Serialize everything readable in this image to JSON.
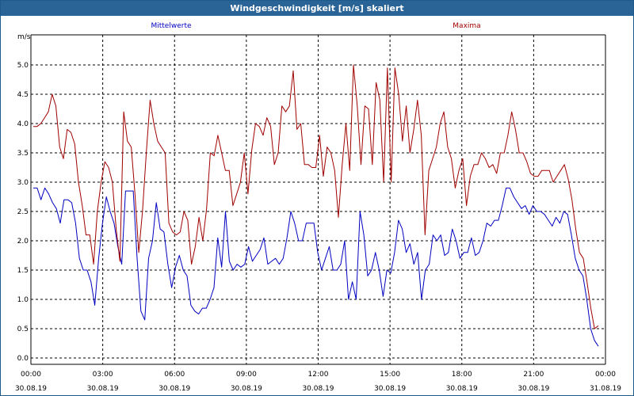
{
  "window": {
    "title": "Windgeschwindigkeit [m/s] skaliert"
  },
  "colors": {
    "titlebar": "#2a6496",
    "mittelwerte": "#0000c0",
    "maxima": "#a00000",
    "grid": "#000000"
  },
  "chart_data": {
    "type": "line",
    "unit_label": "m/s",
    "ylim": [
      0,
      5.3
    ],
    "yticks": [
      "0.0",
      "0.5",
      "1.0",
      "1.5",
      "2.0",
      "2.5",
      "3.0",
      "3.5",
      "4.0",
      "4.5",
      "5.0"
    ],
    "xticks": [
      {
        "time": "00:00",
        "date": "30.08.19"
      },
      {
        "time": "03:00",
        "date": "30.08.19"
      },
      {
        "time": "06:00",
        "date": "30.08.19"
      },
      {
        "time": "09:00",
        "date": "30.08.19"
      },
      {
        "time": "12:00",
        "date": "30.08.19"
      },
      {
        "time": "15:00",
        "date": "30.08.19"
      },
      {
        "time": "18:00",
        "date": "30.08.19"
      },
      {
        "time": "21:00",
        "date": "30.08.19"
      },
      {
        "time": "00:00",
        "date": "31.08.19"
      }
    ],
    "grid": true,
    "series": [
      {
        "name": "Mittelwerte",
        "color": "#0000c0",
        "values": [
          2.9,
          2.9,
          2.7,
          2.9,
          2.8,
          2.65,
          2.55,
          2.3,
          2.7,
          2.7,
          2.65,
          2.3,
          1.7,
          1.5,
          1.5,
          1.3,
          0.9,
          1.7,
          2.3,
          2.75,
          2.5,
          2.3,
          1.9,
          1.6,
          2.85,
          2.85,
          2.85,
          1.7,
          0.8,
          0.65,
          1.7,
          2.0,
          2.65,
          2.2,
          2.15,
          1.6,
          1.2,
          1.55,
          1.75,
          1.5,
          1.4,
          0.9,
          0.8,
          0.75,
          0.85,
          0.85,
          1.0,
          1.2,
          2.05,
          1.55,
          2.5,
          1.65,
          1.5,
          1.6,
          1.55,
          1.6,
          1.9,
          1.65,
          1.75,
          1.85,
          2.05,
          1.6,
          1.65,
          1.7,
          1.6,
          1.7,
          2.05,
          2.5,
          2.3,
          2.0,
          2.0,
          2.3,
          2.3,
          2.3,
          1.8,
          1.5,
          1.7,
          1.9,
          1.5,
          1.5,
          1.6,
          2.0,
          1.0,
          1.3,
          1.0,
          2.5,
          2.1,
          1.4,
          1.5,
          1.8,
          1.5,
          1.05,
          1.5,
          1.45,
          1.8,
          2.35,
          2.2,
          1.8,
          1.95,
          1.6,
          1.8,
          1.0,
          1.5,
          1.6,
          2.1,
          2.0,
          2.1,
          1.75,
          1.8,
          2.2,
          2.0,
          1.7,
          1.8,
          1.8,
          2.05,
          1.75,
          1.8,
          2.0,
          2.3,
          2.25,
          2.35,
          2.35,
          2.6,
          2.9,
          2.9,
          2.75,
          2.65,
          2.55,
          2.6,
          2.45,
          2.6,
          2.5,
          2.5,
          2.45,
          2.35,
          2.25,
          2.4,
          2.3,
          2.5,
          2.45,
          2.1,
          1.7,
          1.5,
          1.4,
          1.0,
          0.5,
          0.3,
          0.2
        ]
      },
      {
        "name": "Maxima",
        "color": "#a00000",
        "values": [
          3.95,
          3.95,
          4.0,
          4.1,
          4.2,
          4.5,
          4.3,
          3.6,
          3.4,
          3.9,
          3.85,
          3.65,
          3.0,
          2.6,
          2.1,
          2.1,
          1.6,
          2.5,
          3.0,
          3.35,
          3.25,
          3.0,
          2.2,
          1.65,
          4.2,
          3.7,
          3.6,
          2.8,
          1.8,
          2.5,
          3.5,
          4.4,
          4.0,
          3.7,
          3.6,
          3.5,
          2.3,
          2.15,
          2.1,
          2.15,
          2.5,
          2.35,
          1.6,
          1.9,
          2.4,
          2.0,
          2.55,
          3.5,
          3.45,
          3.8,
          3.5,
          3.2,
          3.2,
          2.6,
          2.8,
          3.0,
          3.5,
          2.8,
          3.55,
          4.0,
          3.95,
          3.8,
          4.1,
          3.95,
          3.3,
          3.5,
          4.3,
          4.2,
          4.3,
          4.9,
          3.9,
          4.0,
          3.3,
          3.3,
          3.25,
          3.25,
          3.8,
          3.1,
          3.6,
          3.5,
          3.2,
          2.4,
          3.3,
          4.0,
          3.2,
          5.0,
          4.3,
          3.3,
          4.3,
          4.25,
          3.3,
          4.7,
          4.4,
          3.0,
          4.95,
          3.0,
          4.95,
          4.5,
          3.7,
          4.3,
          3.5,
          3.9,
          4.4,
          3.8,
          2.1,
          3.2,
          3.4,
          3.6,
          4.0,
          4.2,
          3.6,
          3.4,
          2.9,
          3.2,
          3.4,
          2.6,
          3.1,
          3.3,
          3.3,
          3.5,
          3.4,
          3.25,
          3.3,
          3.15,
          3.5,
          3.5,
          3.8,
          4.2,
          3.9,
          3.5,
          3.5,
          3.35,
          3.15,
          3.1,
          3.1,
          3.2,
          3.2,
          3.2,
          3.0,
          3.1,
          3.2,
          3.3,
          3.05,
          2.7,
          2.2,
          1.8,
          1.7,
          1.3,
          0.85,
          0.5,
          0.55
        ]
      }
    ]
  }
}
